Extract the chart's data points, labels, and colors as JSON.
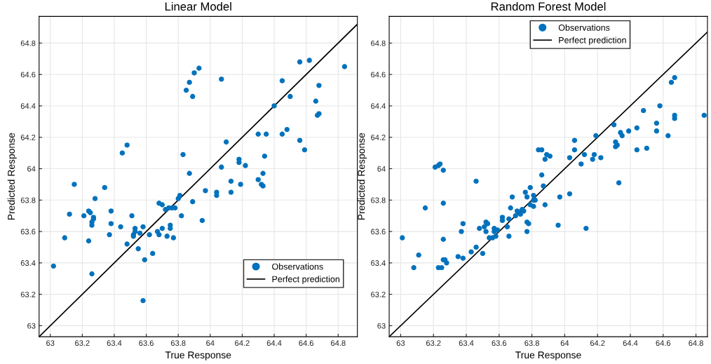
{
  "chart_data": [
    {
      "type": "scatter",
      "title": "Linear Model",
      "xlabel": "True Response",
      "ylabel": "Predicted Response",
      "xlim": [
        62.93,
        64.92
      ],
      "ylim": [
        62.93,
        64.97
      ],
      "xticks": [
        63,
        63.2,
        63.4,
        63.6,
        63.8,
        64,
        64.2,
        64.4,
        64.6,
        64.8
      ],
      "yticks": [
        63,
        63.2,
        63.4,
        63.6,
        63.8,
        64,
        64.2,
        64.4,
        64.6,
        64.8
      ],
      "grid": true,
      "legend": "bottom right",
      "series": [
        {
          "name": "Observations",
          "marker": "circle",
          "color": "#0072bd",
          "x": [
            63.85,
            63.87,
            63.89,
            63.9,
            63.93,
            64.07,
            64.45,
            64.56,
            64.62,
            64.84,
            64.68,
            64.66,
            64.5,
            64.4,
            64.68,
            64.67,
            64.3,
            64.35,
            64.45,
            64.48,
            64.56,
            64.59,
            64.1,
            64.07,
            64.22,
            64.18,
            64.18,
            64.34,
            64.3,
            64.32,
            64.33,
            64.33,
            64.13,
            64.13,
            64.19,
            64.04,
            64.04,
            63.97,
            63.95,
            63.87,
            63.83,
            63.89,
            63.81,
            63.8,
            63.82,
            63.78,
            63.76,
            63.74,
            63.72,
            63.68,
            63.7,
            63.67,
            63.68,
            63.7,
            63.73,
            63.75,
            63.75,
            63.77,
            63.62,
            63.58,
            63.56,
            63.59,
            63.64,
            63.58,
            63.55,
            63.53,
            63.53,
            63.52,
            63.52,
            63.51,
            63.48,
            63.44,
            63.48,
            63.45,
            63.38,
            63.37,
            63.38,
            63.34,
            63.28,
            63.27,
            63.26,
            63.25,
            63.27,
            63.26,
            63.24,
            63.24,
            63.26,
            63.21,
            63.15,
            63.12,
            63.09,
            63.02
          ],
          "values": [
            64.5,
            64.55,
            64.46,
            64.61,
            64.64,
            64.57,
            64.56,
            64.68,
            64.69,
            64.65,
            64.53,
            64.43,
            64.46,
            64.4,
            64.35,
            64.34,
            64.22,
            64.22,
            64.22,
            64.25,
            64.18,
            64.12,
            64.17,
            64.01,
            64.02,
            64.06,
            64.04,
            64.08,
            63.93,
            63.9,
            63.89,
            63.97,
            63.92,
            63.85,
            63.9,
            63.83,
            63.85,
            63.86,
            63.67,
            63.97,
            64.09,
            63.79,
            63.83,
            63.81,
            63.7,
            63.75,
            63.75,
            63.75,
            63.74,
            63.78,
            63.77,
            63.6,
            63.58,
            63.62,
            63.57,
            63.64,
            63.62,
            63.56,
            63.58,
            63.63,
            63.59,
            63.42,
            63.46,
            63.16,
            63.49,
            63.62,
            63.6,
            63.58,
            63.57,
            63.7,
            63.52,
            63.63,
            64.15,
            64.1,
            63.73,
            63.58,
            63.65,
            63.88,
            63.81,
            63.69,
            63.64,
            63.72,
            63.68,
            63.66,
            63.73,
            63.54,
            63.33,
            63.7,
            63.9,
            63.71,
            63.56,
            63.38
          ]
        },
        {
          "name": "Perfect prediction",
          "type": "line",
          "color": "#000000",
          "x": [
            62.93,
            64.92
          ],
          "values": [
            62.93,
            64.92
          ]
        }
      ]
    },
    {
      "type": "scatter",
      "title": "Random Forest Model",
      "xlabel": "True Response",
      "ylabel": "Predicted Response",
      "xlim": [
        62.93,
        64.87
      ],
      "ylim": [
        62.93,
        64.97
      ],
      "xticks": [
        63,
        63.2,
        63.4,
        63.6,
        63.8,
        64,
        64.2,
        64.4,
        64.6,
        64.8
      ],
      "yticks": [
        63,
        63.2,
        63.4,
        63.6,
        63.8,
        64,
        64.2,
        64.4,
        64.6,
        64.8
      ],
      "grid": true,
      "legend": "top",
      "series": [
        {
          "name": "Observations",
          "marker": "circle",
          "color": "#0072bd",
          "x": [
            63.01,
            63.08,
            63.11,
            63.15,
            63.21,
            63.23,
            63.24,
            63.26,
            63.23,
            63.25,
            63.26,
            63.27,
            63.28,
            63.26,
            63.26,
            63.35,
            63.37,
            63.38,
            63.38,
            63.43,
            63.46,
            63.46,
            63.48,
            63.5,
            63.51,
            63.52,
            63.52,
            63.53,
            63.54,
            63.56,
            63.57,
            63.57,
            63.58,
            63.59,
            63.62,
            63.62,
            63.65,
            63.66,
            63.66,
            63.67,
            63.68,
            63.71,
            63.7,
            63.73,
            63.74,
            63.75,
            63.76,
            63.77,
            63.77,
            63.77,
            63.78,
            63.79,
            63.79,
            63.81,
            63.81,
            63.81,
            63.82,
            63.84,
            63.86,
            63.86,
            63.87,
            63.88,
            63.89,
            63.91,
            63.88,
            63.96,
            63.97,
            64.03,
            64.03,
            64.06,
            64.06,
            64.1,
            64.12,
            64.13,
            64.17,
            64.18,
            64.19,
            64.22,
            64.3,
            64.31,
            64.31,
            64.32,
            64.33,
            64.34,
            64.35,
            64.39,
            64.44,
            64.44,
            64.48,
            64.5,
            64.56,
            64.56,
            64.58,
            64.63,
            64.65,
            64.67,
            64.67,
            64.67,
            64.85
          ],
          "values": [
            63.56,
            63.37,
            63.45,
            63.75,
            64.01,
            64.02,
            64.03,
            63.99,
            63.37,
            63.37,
            63.42,
            63.42,
            63.4,
            63.78,
            63.55,
            63.44,
            63.6,
            63.65,
            63.43,
            63.47,
            63.92,
            63.5,
            63.62,
            63.46,
            63.63,
            63.66,
            63.6,
            63.65,
            63.56,
            63.56,
            63.6,
            63.62,
            63.57,
            63.61,
            63.69,
            63.67,
            63.63,
            63.68,
            63.57,
            63.75,
            63.82,
            63.73,
            63.7,
            63.71,
            63.74,
            63.73,
            63.85,
            63.6,
            63.66,
            63.82,
            63.65,
            63.88,
            63.77,
            63.8,
            63.76,
            63.83,
            63.8,
            64.12,
            64.12,
            63.96,
            63.89,
            64.06,
            64.09,
            64.08,
            63.77,
            63.64,
            63.82,
            63.84,
            64.07,
            64.18,
            64.12,
            64.03,
            64.09,
            63.62,
            64.06,
            64.09,
            64.21,
            64.07,
            64.28,
            64.17,
            64.14,
            64.15,
            63.91,
            64.23,
            64.21,
            64.24,
            64.26,
            64.12,
            64.37,
            64.13,
            64.29,
            64.24,
            64.4,
            64.21,
            64.55,
            64.58,
            64.34,
            64.32,
            64.34
          ]
        },
        {
          "name": "Perfect prediction",
          "type": "line",
          "color": "#000000",
          "x": [
            62.93,
            64.87
          ],
          "values": [
            62.93,
            64.87
          ]
        }
      ]
    }
  ]
}
